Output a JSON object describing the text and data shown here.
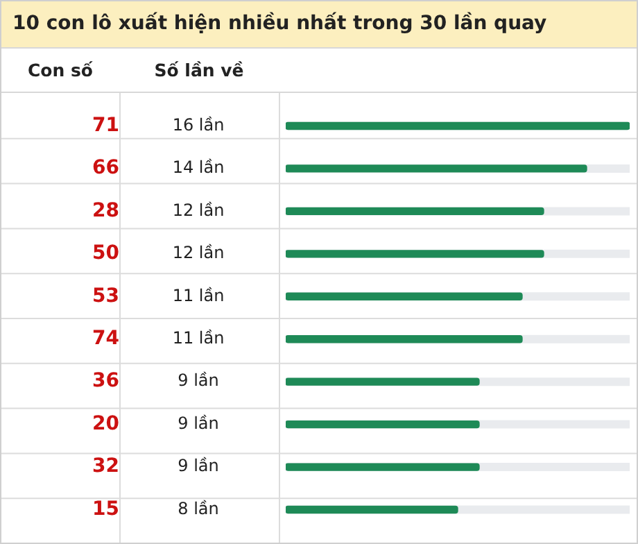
{
  "chart_data": {
    "type": "bar",
    "orientation": "horizontal",
    "title": "10 con lô xuất hiện nhiều nhất trong 30 lần quay",
    "ylabel": "Con số",
    "xlabel": "Số lần về",
    "categories": [
      "71",
      "66",
      "28",
      "50",
      "53",
      "74",
      "36",
      "20",
      "32",
      "15"
    ],
    "values": [
      16,
      14,
      12,
      12,
      11,
      11,
      9,
      9,
      9,
      8
    ],
    "value_labels": [
      "16 lần",
      "14 lần",
      "12 lần",
      "12 lần",
      "11 lần",
      "11 lần",
      "9 lần",
      "9 lần",
      "9 lần",
      "8 lần"
    ],
    "color": "#1e8a57",
    "xlim": [
      0,
      16
    ],
    "tick_labels": "y",
    "grid": false,
    "legend": false
  }
}
